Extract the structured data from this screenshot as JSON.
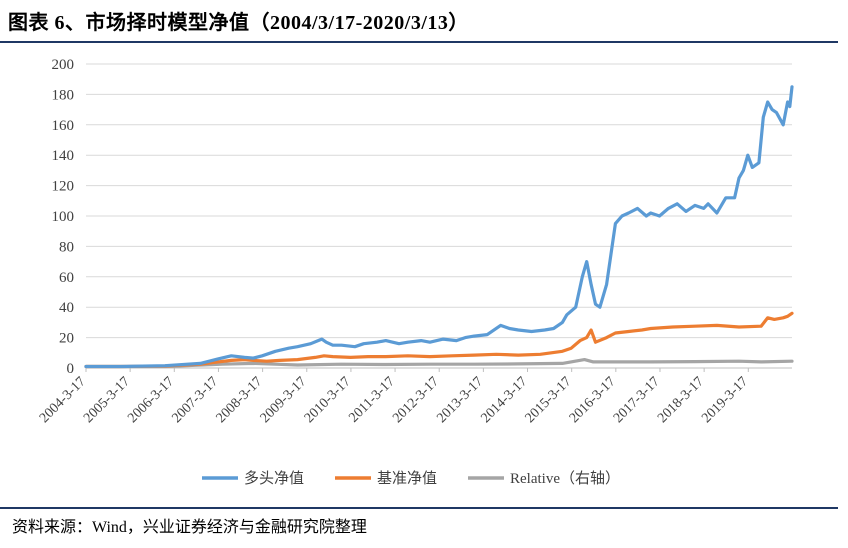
{
  "figure": {
    "title": "图表 6、市场择时模型净值（2004/3/17-2020/3/13）",
    "source": "资料来源：Wind，兴业证券经济与金融研究院整理"
  },
  "colors": {
    "long_nav": "#5b9bd5",
    "benchmark_nav": "#ed7d31",
    "relative": "#a5a5a5",
    "grid": "#d9d9d9",
    "axis": "#bfbfbf",
    "rule": "#1f3864"
  },
  "chart_data": {
    "type": "line",
    "ylim": [
      0,
      200
    ],
    "yticks": [
      0,
      20,
      40,
      60,
      80,
      100,
      120,
      140,
      160,
      180,
      200
    ],
    "xlim": [
      2004.21,
      2020.2
    ],
    "xtick_labels": [
      "2004-3-17",
      "2005-3-17",
      "2006-3-17",
      "2007-3-17",
      "2008-3-17",
      "2009-3-17",
      "2010-3-17",
      "2011-3-17",
      "2012-3-17",
      "2013-3-17",
      "2014-3-17",
      "2015-3-17",
      "2016-3-17",
      "2017-3-17",
      "2018-3-17",
      "2019-3-17"
    ],
    "legend_position": "bottom",
    "grid": true,
    "series": [
      {
        "name": "多头净值",
        "color_key": "long_nav",
        "x": [
          2004.21,
          2005.0,
          2006.0,
          2006.8,
          2007.2,
          2007.5,
          2007.8,
          2008.0,
          2008.2,
          2008.5,
          2008.8,
          2009.0,
          2009.3,
          2009.55,
          2009.65,
          2009.8,
          2010.0,
          2010.3,
          2010.5,
          2010.8,
          2011.0,
          2011.3,
          2011.5,
          2011.8,
          2012.0,
          2012.3,
          2012.6,
          2012.8,
          2013.0,
          2013.3,
          2013.6,
          2013.8,
          2014.0,
          2014.3,
          2014.6,
          2014.8,
          2015.0,
          2015.1,
          2015.3,
          2015.45,
          2015.55,
          2015.65,
          2015.75,
          2015.85,
          2016.0,
          2016.1,
          2016.2,
          2016.35,
          2016.5,
          2016.7,
          2016.9,
          2017.0,
          2017.2,
          2017.4,
          2017.6,
          2017.8,
          2018.0,
          2018.2,
          2018.3,
          2018.5,
          2018.7,
          2018.9,
          2019.0,
          2019.1,
          2019.2,
          2019.3,
          2019.45,
          2019.55,
          2019.65,
          2019.75,
          2019.85,
          2020.0,
          2020.1,
          2020.15,
          2020.2
        ],
        "values": [
          1,
          1,
          1.5,
          3,
          6,
          8,
          7,
          6.5,
          8,
          11,
          13,
          14,
          16,
          19,
          17,
          15,
          15,
          14,
          16,
          17,
          18,
          16,
          17,
          18,
          17,
          19,
          18,
          20,
          21,
          22,
          28,
          26,
          25,
          24,
          25,
          26,
          30,
          35,
          40,
          60,
          70,
          55,
          42,
          40,
          55,
          75,
          95,
          100,
          102,
          105,
          100,
          102,
          100,
          105,
          108,
          103,
          107,
          105,
          108,
          102,
          112,
          112,
          125,
          130,
          140,
          132,
          135,
          165,
          175,
          170,
          168,
          160,
          175,
          172,
          185
        ]
      },
      {
        "name": "基准净值",
        "color_key": "benchmark_nav",
        "x": [
          2004.21,
          2005.0,
          2006.0,
          2006.8,
          2007.2,
          2007.5,
          2007.8,
          2008.0,
          2008.3,
          2008.6,
          2009.0,
          2009.4,
          2009.6,
          2009.8,
          2010.2,
          2010.6,
          2011.0,
          2011.5,
          2012.0,
          2012.5,
          2013.0,
          2013.5,
          2014.0,
          2014.5,
          2015.0,
          2015.2,
          2015.4,
          2015.55,
          2015.65,
          2015.75,
          2016.0,
          2016.2,
          2016.5,
          2016.8,
          2017.0,
          2017.5,
          2018.0,
          2018.5,
          2019.0,
          2019.5,
          2019.65,
          2019.8,
          2020.0,
          2020.1,
          2020.2
        ],
        "values": [
          1,
          1,
          1.3,
          2.5,
          4,
          5,
          5.5,
          5,
          4.5,
          5,
          5.5,
          7,
          8,
          7.5,
          7,
          7.5,
          7.5,
          8,
          7.5,
          8,
          8.5,
          9,
          8.5,
          9,
          11,
          13,
          18,
          20,
          25,
          17,
          20,
          23,
          24,
          25,
          26,
          27,
          27.5,
          28,
          27,
          27.5,
          33,
          32,
          33,
          34,
          36
        ]
      },
      {
        "name": "Relative（右轴）",
        "color_key": "relative",
        "x": [
          2004.21,
          2006.0,
          2007.3,
          2008.0,
          2008.5,
          2009.0,
          2010.0,
          2011.0,
          2012.0,
          2013.0,
          2014.0,
          2015.0,
          2015.5,
          2015.7,
          2016.0,
          2017.0,
          2018.0,
          2019.0,
          2019.5,
          2020.2
        ],
        "values": [
          1,
          1,
          2.5,
          3,
          2.5,
          2,
          2.5,
          2.3,
          2.5,
          2.5,
          2.7,
          3,
          5.5,
          4,
          4,
          4,
          4.2,
          4.5,
          4,
          4.5
        ]
      }
    ]
  }
}
